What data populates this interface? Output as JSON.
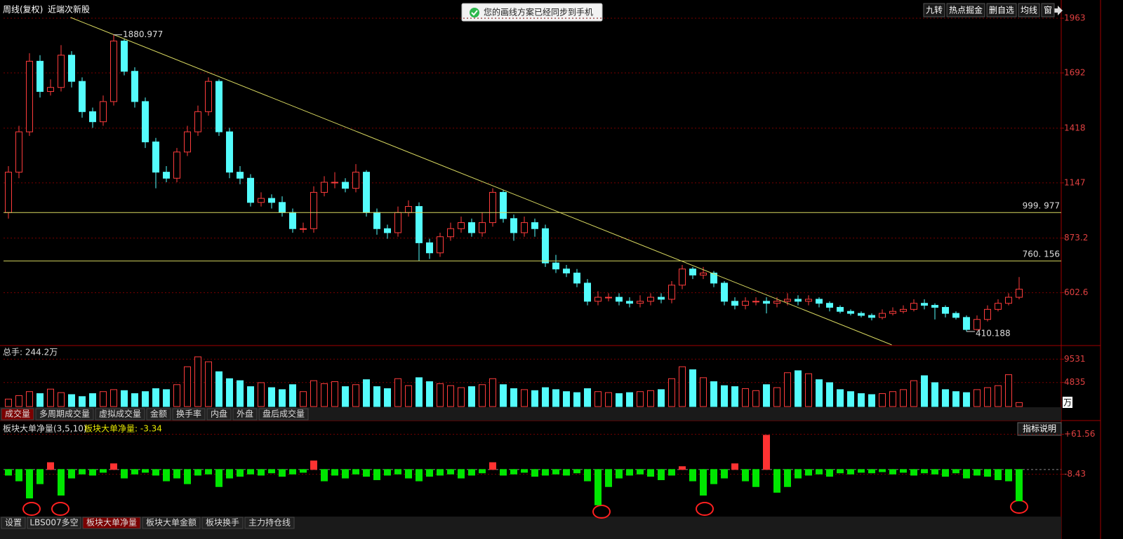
{
  "toolbar": {
    "right_buttons": [
      "九转",
      "热点掘金",
      "删自选",
      "均线",
      "窗"
    ]
  },
  "notification": "您的画线方案已经同步到手机",
  "volume_tabs": [
    "成交量",
    "多周期成交量",
    "虚拟成交量",
    "金额",
    "换手率",
    "内盘",
    "外盘",
    "盘后成交量"
  ],
  "indicator_tabs": [
    "设置",
    "LBS007多空",
    "板块大单净量",
    "板块大单金额",
    "板块换手",
    "主力持仓线"
  ],
  "indicator_button": "指标说明",
  "chart_data": [
    {
      "type": "candlestick",
      "title": "周线(复权)",
      "subtitle": "近端次新股",
      "up_color": "#ff3c3c",
      "down_color": "#54fcfc",
      "line_color": "#d8d860",
      "grid": true,
      "ylim": [
        344,
        1984
      ],
      "yticks": [
        1963,
        1692,
        1418,
        1147,
        873.2,
        602.6
      ],
      "hlines": [
        {
          "value": 999.977,
          "label": "999. 977"
        },
        {
          "value": 760.156,
          "label": "760. 156"
        }
      ],
      "trendline": {
        "x": [
          5.9,
          83.9
        ],
        "y": [
          1967,
          344
        ]
      },
      "open": [
        1000,
        1200,
        1400,
        1750,
        1600,
        1620,
        1780,
        1650,
        1500,
        1450,
        1550,
        1850,
        1700,
        1550,
        1350,
        1200,
        1170,
        1300,
        1400,
        1500,
        1650,
        1400,
        1200,
        1170,
        1050,
        1070,
        1050,
        1000,
        920,
        920,
        1100,
        1150,
        1150,
        1120,
        1200,
        1000,
        920,
        900,
        1000,
        1030,
        850,
        800,
        880,
        920,
        950,
        900,
        950,
        1100,
        970,
        900,
        950,
        920,
        750,
        720,
        700,
        650,
        560,
        580,
        580,
        560,
        550,
        560,
        580,
        570,
        640,
        720,
        690,
        700,
        650,
        560,
        540,
        560,
        560,
        550,
        560,
        570,
        560,
        570,
        550,
        530,
        510,
        500,
        490,
        480,
        500,
        510,
        520,
        550,
        540,
        530,
        500,
        480,
        420,
        470,
        520,
        550,
        580
      ],
      "high": [
        1230,
        1430,
        1790,
        1780,
        1660,
        1830,
        1800,
        1670,
        1520,
        1580,
        1880.977,
        1860,
        1720,
        1570,
        1370,
        1230,
        1320,
        1430,
        1530,
        1670,
        1660,
        1420,
        1230,
        1190,
        1100,
        1090,
        1080,
        1020,
        950,
        1130,
        1180,
        1200,
        1170,
        1240,
        1210,
        1020,
        940,
        1030,
        1060,
        1050,
        870,
        900,
        950,
        980,
        970,
        1000,
        1120,
        1110,
        990,
        980,
        970,
        940,
        790,
        740,
        720,
        670,
        610,
        600,
        600,
        580,
        590,
        600,
        600,
        660,
        740,
        730,
        730,
        710,
        660,
        580,
        580,
        580,
        580,
        580,
        600,
        590,
        590,
        580,
        560,
        540,
        520,
        510,
        500,
        520,
        530,
        540,
        570,
        570,
        550,
        540,
        510,
        490,
        490,
        540,
        570,
        600,
        680
      ],
      "low": [
        970,
        1170,
        1380,
        1570,
        1580,
        1600,
        1620,
        1470,
        1420,
        1430,
        1530,
        1680,
        1520,
        1320,
        1120,
        1150,
        1150,
        1280,
        1380,
        1480,
        1380,
        1170,
        1140,
        1030,
        1030,
        1020,
        980,
        900,
        900,
        900,
        1080,
        1120,
        1100,
        1100,
        980,
        890,
        870,
        880,
        980,
        760,
        770,
        780,
        860,
        900,
        880,
        880,
        930,
        950,
        860,
        880,
        880,
        730,
        700,
        680,
        630,
        540,
        540,
        560,
        540,
        530,
        530,
        540,
        550,
        550,
        620,
        670,
        670,
        630,
        540,
        520,
        520,
        540,
        500,
        530,
        540,
        540,
        540,
        530,
        510,
        500,
        490,
        480,
        465,
        470,
        490,
        500,
        510,
        520,
        470,
        480,
        470,
        410.188,
        415,
        460,
        510,
        540,
        570
      ],
      "close": [
        1200,
        1400,
        1750,
        1600,
        1620,
        1780,
        1650,
        1500,
        1450,
        1550,
        1850,
        1700,
        1550,
        1350,
        1200,
        1170,
        1300,
        1400,
        1500,
        1650,
        1400,
        1200,
        1170,
        1050,
        1070,
        1050,
        1000,
        920,
        920,
        1100,
        1150,
        1150,
        1120,
        1200,
        1000,
        920,
        900,
        1000,
        1030,
        850,
        800,
        880,
        920,
        950,
        900,
        950,
        1100,
        970,
        900,
        950,
        920,
        750,
        720,
        700,
        650,
        560,
        580,
        580,
        560,
        550,
        560,
        580,
        570,
        640,
        720,
        690,
        700,
        650,
        560,
        540,
        560,
        560,
        550,
        560,
        570,
        560,
        570,
        550,
        530,
        510,
        500,
        490,
        480,
        500,
        510,
        520,
        550,
        540,
        530,
        500,
        480,
        420,
        470,
        520,
        550,
        580,
        620
      ]
    },
    {
      "type": "bar",
      "title": "总手: 244.2万",
      "unit": "万",
      "grid": true,
      "up_color": "#ff3c3c",
      "down_color": "#54fcfc",
      "ylim": [
        0,
        11700
      ],
      "yticks": [
        9531,
        4835
      ],
      "values": [
        1500,
        2200,
        3000,
        2600,
        3500,
        2800,
        2400,
        2000,
        2600,
        3000,
        3400,
        3200,
        2600,
        3000,
        3600,
        3400,
        4400,
        8000,
        10000,
        9000,
        7000,
        5600,
        5200,
        4000,
        4800,
        3800,
        3400,
        4400,
        3000,
        5200,
        4600,
        5000,
        4000,
        4400,
        5400,
        4000,
        3600,
        5600,
        4200,
        5800,
        5000,
        4600,
        4200,
        3800,
        4000,
        4400,
        5600,
        4400,
        3600,
        3400,
        3200,
        3800,
        3400,
        3000,
        2800,
        3600,
        3000,
        2800,
        2600,
        2800,
        3000,
        3200,
        3400,
        5600,
        8000,
        7400,
        5800,
        5000,
        4200,
        4000,
        3600,
        3200,
        4400,
        3800,
        6800,
        7200,
        6600,
        5400,
        4800,
        3400,
        3000,
        2600,
        2400,
        2600,
        3000,
        3400,
        5200,
        6200,
        4800,
        3400,
        3000,
        2800,
        3400,
        3800,
        4200,
        6400,
        800
      ]
    },
    {
      "type": "bar",
      "title": "板块大单净量(3,5,10)",
      "subtitle": "板块大单净量: -3.34",
      "grid": true,
      "up_color": "#ff3232",
      "down_color": "#00e600",
      "ylim": [
        -80,
        82
      ],
      "yticks": [
        {
          "value": 61.56,
          "label": "+61.56"
        },
        -8.43
      ],
      "values": [
        -10,
        -20,
        -50,
        -25,
        12,
        -45,
        -15,
        -8,
        -10,
        -5,
        10,
        -15,
        -8,
        -5,
        -10,
        -20,
        -15,
        -25,
        -10,
        -8,
        -30,
        -15,
        -12,
        -8,
        -10,
        -6,
        -12,
        -8,
        -5,
        15,
        -20,
        -10,
        -15,
        -8,
        -12,
        -18,
        -10,
        -8,
        -15,
        -20,
        -12,
        -10,
        -8,
        -15,
        -10,
        -6,
        12,
        -10,
        -8,
        -5,
        -12,
        -10,
        -8,
        -10,
        -6,
        -20,
        -62,
        -30,
        -15,
        -10,
        -8,
        -12,
        -18,
        -10,
        5,
        -20,
        -45,
        -25,
        -15,
        10,
        -20,
        -30,
        60,
        -40,
        -30,
        -15,
        -10,
        -8,
        -12,
        -6,
        -8,
        -5,
        -6,
        -4,
        -8,
        -5,
        -10,
        -6,
        -8,
        -12,
        -6,
        -15,
        -10,
        -12,
        -18,
        -20,
        -55
      ]
    }
  ]
}
